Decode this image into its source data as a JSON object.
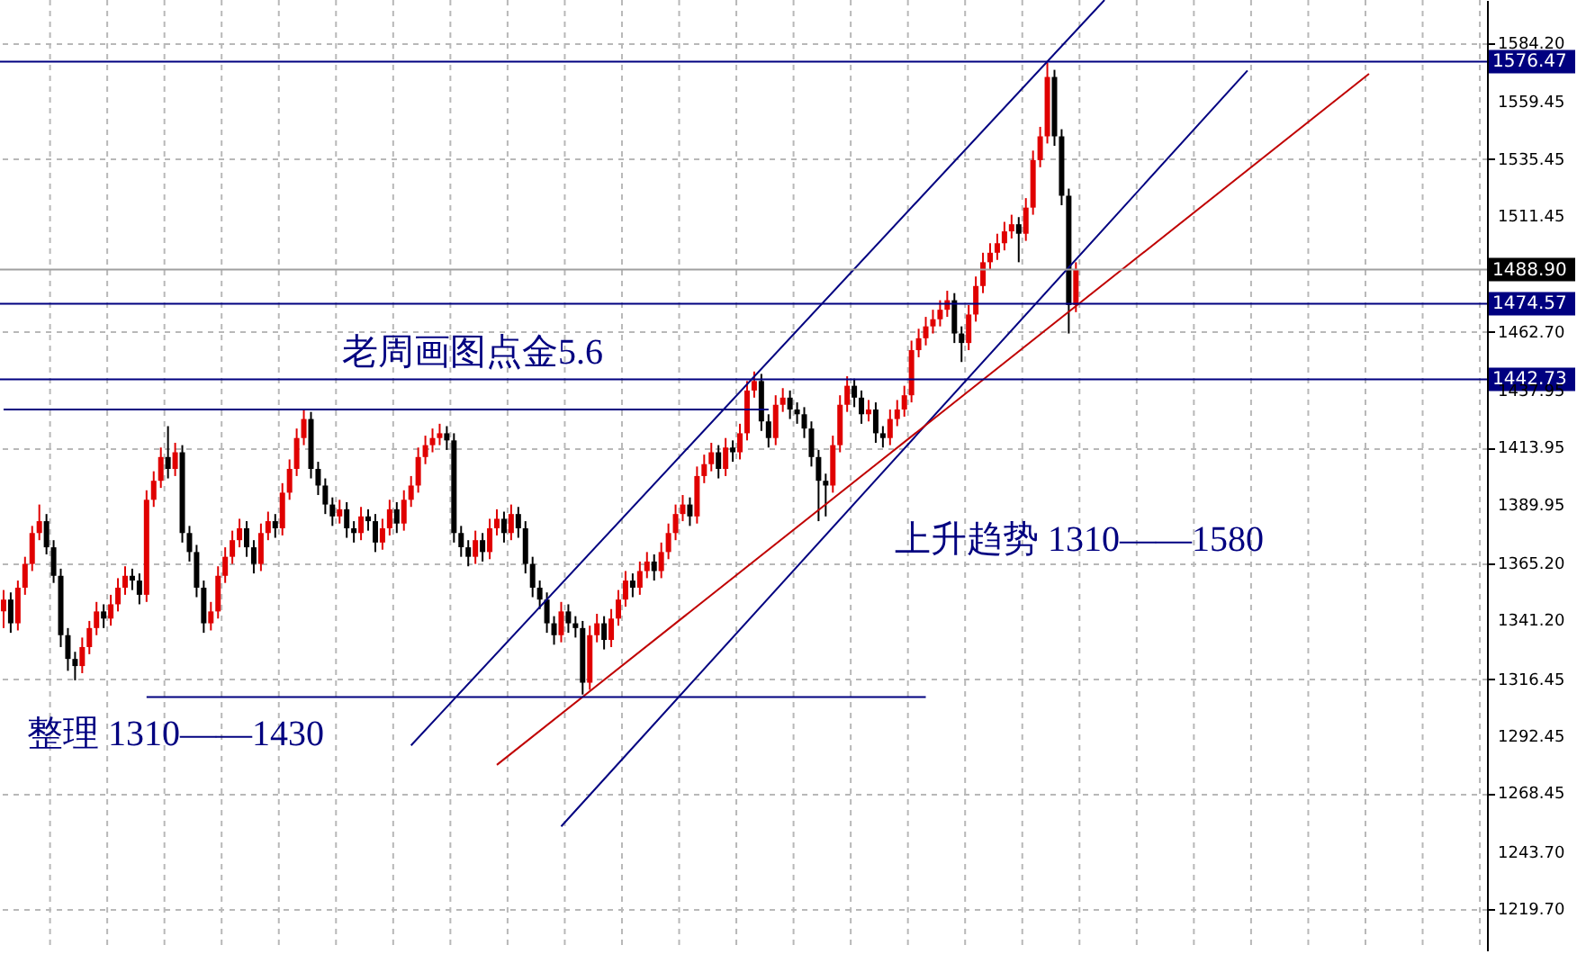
{
  "chart_data": {
    "type": "candlestick",
    "categories": [
      null,
      null,
      null,
      null,
      null,
      null,
      null,
      null,
      null,
      null,
      null,
      null,
      null,
      null,
      null,
      null,
      null,
      null,
      null,
      null,
      null,
      null,
      null,
      null,
      null,
      null,
      null,
      null,
      null,
      null,
      null,
      null,
      null,
      null,
      null,
      null,
      null,
      null,
      null,
      null,
      null,
      null,
      null,
      null,
      null,
      null,
      null,
      null,
      null,
      null,
      null,
      null,
      null,
      null,
      null,
      null,
      null,
      null,
      null,
      null,
      null,
      null,
      null,
      null,
      null,
      null,
      null,
      null,
      null,
      null,
      null,
      null,
      null,
      null,
      null,
      null,
      null,
      null,
      null,
      null,
      null,
      null,
      null,
      null,
      null,
      null,
      null,
      null,
      null,
      null,
      null,
      null,
      null,
      null,
      null,
      null,
      null,
      null,
      null,
      null,
      null,
      null,
      null,
      null,
      null,
      null,
      null,
      null,
      null,
      null,
      null,
      null,
      null,
      null,
      null,
      null,
      null,
      null,
      null,
      null,
      null,
      null,
      null,
      null,
      null,
      null,
      null,
      null,
      null,
      null,
      null,
      null,
      null,
      null,
      null,
      null,
      null,
      null,
      null,
      null,
      null,
      null,
      null,
      null,
      null,
      null,
      null,
      null,
      null,
      null,
      null,
      null,
      null,
      null,
      null,
      null,
      null,
      null,
      null,
      null,
      null,
      null,
      null,
      null,
      null,
      null,
      null,
      null,
      null,
      null,
      null,
      null,
      null,
      null,
      null,
      null,
      null,
      null,
      null,
      null,
      null,
      null,
      null,
      null,
      null,
      null,
      null,
      null,
      null,
      null,
      null,
      null,
      null,
      null,
      null,
      null,
      null,
      null,
      null,
      null,
      null,
      null,
      null,
      null,
      null,
      null,
      null,
      null
    ],
    "ohlc": [
      [
        1345,
        1354,
        1338,
        1350
      ],
      [
        1350,
        1353,
        1336,
        1340
      ],
      [
        1340,
        1358,
        1337,
        1355
      ],
      [
        1355,
        1368,
        1352,
        1365
      ],
      [
        1365,
        1381,
        1362,
        1378
      ],
      [
        1378,
        1390,
        1375,
        1383
      ],
      [
        1383,
        1386,
        1369,
        1372
      ],
      [
        1372,
        1375,
        1357,
        1360
      ],
      [
        1360,
        1363,
        1330,
        1335
      ],
      [
        1335,
        1338,
        1320,
        1325
      ],
      [
        1325,
        1328,
        1316,
        1322
      ],
      [
        1322,
        1334,
        1319,
        1330
      ],
      [
        1330,
        1341,
        1327,
        1338
      ],
      [
        1338,
        1349,
        1335,
        1345
      ],
      [
        1345,
        1348,
        1338,
        1342
      ],
      [
        1342,
        1352,
        1339,
        1348
      ],
      [
        1348,
        1359,
        1345,
        1355
      ],
      [
        1355,
        1364,
        1352,
        1360
      ],
      [
        1360,
        1363,
        1354,
        1358
      ],
      [
        1358,
        1361,
        1348,
        1352
      ],
      [
        1352,
        1396,
        1349,
        1392
      ],
      [
        1392,
        1404,
        1389,
        1400
      ],
      [
        1400,
        1414,
        1397,
        1410
      ],
      [
        1410,
        1423,
        1401,
        1405
      ],
      [
        1405,
        1416,
        1402,
        1412
      ],
      [
        1412,
        1415,
        1374,
        1378
      ],
      [
        1378,
        1381,
        1366,
        1370
      ],
      [
        1370,
        1373,
        1351,
        1355
      ],
      [
        1355,
        1358,
        1336,
        1340
      ],
      [
        1340,
        1349,
        1337,
        1345
      ],
      [
        1345,
        1364,
        1342,
        1360
      ],
      [
        1360,
        1372,
        1357,
        1368
      ],
      [
        1368,
        1379,
        1365,
        1375
      ],
      [
        1375,
        1384,
        1372,
        1380
      ],
      [
        1380,
        1383,
        1368,
        1372
      ],
      [
        1372,
        1375,
        1361,
        1365
      ],
      [
        1365,
        1382,
        1362,
        1378
      ],
      [
        1378,
        1387,
        1375,
        1383
      ],
      [
        1383,
        1386,
        1376,
        1380
      ],
      [
        1380,
        1399,
        1377,
        1395
      ],
      [
        1395,
        1409,
        1392,
        1405
      ],
      [
        1405,
        1422,
        1402,
        1418
      ],
      [
        1418,
        1430,
        1415,
        1426
      ],
      [
        1426,
        1429,
        1401,
        1405
      ],
      [
        1405,
        1408,
        1394,
        1398
      ],
      [
        1398,
        1401,
        1386,
        1390
      ],
      [
        1390,
        1393,
        1381,
        1385
      ],
      [
        1385,
        1392,
        1382,
        1388
      ],
      [
        1388,
        1391,
        1376,
        1380
      ],
      [
        1380,
        1383,
        1374,
        1378
      ],
      [
        1378,
        1389,
        1375,
        1385
      ],
      [
        1385,
        1388,
        1379,
        1383
      ],
      [
        1383,
        1386,
        1370,
        1374
      ],
      [
        1374,
        1384,
        1371,
        1380
      ],
      [
        1380,
        1392,
        1377,
        1388
      ],
      [
        1388,
        1391,
        1378,
        1382
      ],
      [
        1382,
        1396,
        1379,
        1392
      ],
      [
        1392,
        1402,
        1389,
        1398
      ],
      [
        1398,
        1414,
        1395,
        1410
      ],
      [
        1410,
        1419,
        1407,
        1415
      ],
      [
        1415,
        1422,
        1412,
        1418
      ],
      [
        1418,
        1424,
        1415,
        1420
      ],
      [
        1420,
        1423,
        1413,
        1417
      ],
      [
        1417,
        1420,
        1374,
        1378
      ],
      [
        1378,
        1381,
        1368,
        1372
      ],
      [
        1372,
        1375,
        1364,
        1368
      ],
      [
        1368,
        1379,
        1365,
        1375
      ],
      [
        1375,
        1378,
        1366,
        1370
      ],
      [
        1370,
        1384,
        1367,
        1380
      ],
      [
        1380,
        1388,
        1377,
        1384
      ],
      [
        1384,
        1387,
        1374,
        1378
      ],
      [
        1378,
        1390,
        1375,
        1386
      ],
      [
        1386,
        1389,
        1376,
        1380
      ],
      [
        1380,
        1383,
        1361,
        1365
      ],
      [
        1365,
        1368,
        1351,
        1355
      ],
      [
        1355,
        1358,
        1346,
        1350
      ],
      [
        1350,
        1353,
        1336,
        1340
      ],
      [
        1340,
        1343,
        1331,
        1335
      ],
      [
        1335,
        1349,
        1332,
        1345
      ],
      [
        1345,
        1348,
        1336,
        1340
      ],
      [
        1340,
        1343,
        1334,
        1338
      ],
      [
        1338,
        1341,
        1310,
        1315
      ],
      [
        1315,
        1339,
        1312,
        1335
      ],
      [
        1335,
        1344,
        1332,
        1340
      ],
      [
        1340,
        1343,
        1329,
        1333
      ],
      [
        1333,
        1346,
        1330,
        1342
      ],
      [
        1342,
        1354,
        1339,
        1350
      ],
      [
        1350,
        1362,
        1347,
        1358
      ],
      [
        1358,
        1361,
        1351,
        1355
      ],
      [
        1355,
        1366,
        1352,
        1362
      ],
      [
        1362,
        1370,
        1359,
        1366
      ],
      [
        1366,
        1369,
        1358,
        1362
      ],
      [
        1362,
        1374,
        1359,
        1370
      ],
      [
        1370,
        1382,
        1367,
        1378
      ],
      [
        1378,
        1390,
        1375,
        1386
      ],
      [
        1386,
        1394,
        1383,
        1390
      ],
      [
        1390,
        1393,
        1381,
        1385
      ],
      [
        1385,
        1406,
        1382,
        1402
      ],
      [
        1402,
        1411,
        1399,
        1407
      ],
      [
        1407,
        1416,
        1404,
        1412
      ],
      [
        1412,
        1415,
        1401,
        1405
      ],
      [
        1405,
        1418,
        1402,
        1414
      ],
      [
        1414,
        1417,
        1408,
        1412
      ],
      [
        1412,
        1424,
        1409,
        1420
      ],
      [
        1420,
        1442,
        1417,
        1438
      ],
      [
        1438,
        1446,
        1435,
        1442
      ],
      [
        1442,
        1445,
        1421,
        1425
      ],
      [
        1425,
        1428,
        1414,
        1418
      ],
      [
        1418,
        1436,
        1415,
        1432
      ],
      [
        1432,
        1439,
        1429,
        1435
      ],
      [
        1435,
        1438,
        1426,
        1430
      ],
      [
        1430,
        1433,
        1424,
        1428
      ],
      [
        1428,
        1431,
        1418,
        1422
      ],
      [
        1422,
        1425,
        1406,
        1410
      ],
      [
        1410,
        1413,
        1383,
        1400
      ],
      [
        1400,
        1403,
        1385,
        1398
      ],
      [
        1398,
        1419,
        1395,
        1415
      ],
      [
        1415,
        1436,
        1412,
        1432
      ],
      [
        1432,
        1444,
        1429,
        1440
      ],
      [
        1440,
        1443,
        1431,
        1435
      ],
      [
        1435,
        1438,
        1424,
        1428
      ],
      [
        1428,
        1434,
        1425,
        1430
      ],
      [
        1430,
        1433,
        1416,
        1420
      ],
      [
        1420,
        1423,
        1414,
        1418
      ],
      [
        1418,
        1430,
        1415,
        1426
      ],
      [
        1426,
        1434,
        1423,
        1430
      ],
      [
        1430,
        1440,
        1427,
        1436
      ],
      [
        1436,
        1459,
        1433,
        1455
      ],
      [
        1455,
        1464,
        1452,
        1460
      ],
      [
        1460,
        1469,
        1457,
        1465
      ],
      [
        1465,
        1472,
        1462,
        1468
      ],
      [
        1468,
        1476,
        1465,
        1472
      ],
      [
        1472,
        1480,
        1469,
        1476
      ],
      [
        1476,
        1479,
        1458,
        1462
      ],
      [
        1462,
        1465,
        1450,
        1458
      ],
      [
        1458,
        1474,
        1455,
        1470
      ],
      [
        1470,
        1486,
        1467,
        1482
      ],
      [
        1482,
        1496,
        1479,
        1492
      ],
      [
        1492,
        1500,
        1489,
        1496
      ],
      [
        1496,
        1504,
        1493,
        1500
      ],
      [
        1500,
        1509,
        1497,
        1505
      ],
      [
        1505,
        1512,
        1502,
        1508
      ],
      [
        1508,
        1511,
        1492,
        1504
      ],
      [
        1504,
        1519,
        1501,
        1515
      ],
      [
        1515,
        1539,
        1512,
        1535
      ],
      [
        1535,
        1549,
        1532,
        1545
      ],
      [
        1545,
        1576,
        1542,
        1570
      ],
      [
        1570,
        1573,
        1541,
        1545
      ],
      [
        1545,
        1548,
        1516,
        1520
      ],
      [
        1520,
        1523,
        1462,
        1474
      ],
      [
        1474,
        1492,
        1471,
        1489
      ],
      null,
      null,
      null,
      null,
      null,
      null,
      null,
      null,
      null,
      null,
      null,
      null,
      null,
      null,
      null,
      null,
      null,
      null,
      null,
      null,
      null,
      null,
      null,
      null,
      null,
      null,
      null,
      null,
      null,
      null,
      null,
      null,
      null,
      null,
      null,
      null,
      null,
      null,
      null,
      null,
      null,
      null,
      null,
      null,
      null,
      null,
      null,
      null,
      null,
      null,
      null,
      null,
      null,
      null,
      null,
      null,
      null
    ],
    "colors": [
      "#e00000",
      "#000000",
      "#e00000",
      "#e00000",
      "#e00000",
      "#e00000",
      "#000000",
      "#000000",
      "#000000",
      "#000000",
      "#000000",
      "#e00000",
      "#e00000",
      "#e00000",
      "#000000",
      "#e00000",
      "#e00000",
      "#e00000",
      "#000000",
      "#000000",
      "#e00000",
      "#e00000",
      "#e00000",
      "#000000",
      "#e00000",
      "#000000",
      "#000000",
      "#000000",
      "#000000",
      "#e00000",
      "#e00000",
      "#e00000",
      "#e00000",
      "#e00000",
      "#000000",
      "#000000",
      "#e00000",
      "#e00000",
      "#000000",
      "#e00000",
      "#e00000",
      "#e00000",
      "#e00000",
      "#000000",
      "#000000",
      "#000000",
      "#000000",
      "#e00000",
      "#000000",
      "#000000",
      "#e00000",
      "#000000",
      "#000000",
      "#e00000",
      "#e00000",
      "#000000",
      "#e00000",
      "#e00000",
      "#e00000",
      "#e00000",
      "#e00000",
      "#e00000",
      "#000000",
      "#000000",
      "#000000",
      "#000000",
      "#e00000",
      "#000000",
      "#e00000",
      "#e00000",
      "#000000",
      "#e00000",
      "#000000",
      "#000000",
      "#000000",
      "#000000",
      "#000000",
      "#000000",
      "#e00000",
      "#000000",
      "#000000",
      "#000000",
      "#e00000",
      "#e00000",
      "#000000",
      "#e00000",
      "#e00000",
      "#e00000",
      "#000000",
      "#e00000",
      "#e00000",
      "#000000",
      "#e00000",
      "#e00000",
      "#e00000",
      "#e00000",
      "#000000",
      "#e00000",
      "#e00000",
      "#e00000",
      "#000000",
      "#e00000",
      "#000000",
      "#e00000",
      "#e00000",
      "#e00000",
      "#000000",
      "#000000",
      "#e00000",
      "#e00000",
      "#000000",
      "#000000",
      "#000000",
      "#000000",
      "#000000",
      "#000000",
      "#e00000",
      "#e00000",
      "#e00000",
      "#000000",
      "#000000",
      "#e00000",
      "#000000",
      "#000000",
      "#e00000",
      "#e00000",
      "#e00000",
      "#e00000",
      "#e00000",
      "#e00000",
      "#e00000",
      "#e00000",
      "#e00000",
      "#000000",
      "#000000",
      "#e00000",
      "#e00000",
      "#e00000",
      "#e00000",
      "#e00000",
      "#e00000",
      "#e00000",
      "#000000",
      "#e00000",
      "#e00000",
      "#e00000",
      "#e00000",
      "#000000",
      "#000000",
      "#000000",
      "#e00000",
      null,
      null,
      null,
      null,
      null,
      null,
      null,
      null,
      null,
      null,
      null,
      null,
      null,
      null,
      null,
      null,
      null,
      null,
      null,
      null,
      null,
      null,
      null,
      null,
      null,
      null,
      null,
      null,
      null,
      null,
      null,
      null,
      null,
      null,
      null,
      null,
      null,
      null,
      null,
      null,
      null,
      null,
      null,
      null,
      null,
      null,
      null,
      null,
      null,
      null,
      null,
      null,
      null,
      null,
      null,
      null,
      null
    ],
    "series": [
      {
        "type": "line",
        "color": "#000080",
        "values": [
          null,
          null,
          null,
          null,
          null,
          null,
          null,
          null,
          null,
          null,
          null,
          null,
          null,
          null,
          null,
          null,
          null,
          null,
          null,
          null,
          null,
          null,
          null,
          null,
          null,
          null,
          null,
          null,
          null,
          null,
          null,
          null,
          null,
          null,
          null,
          null,
          null,
          null,
          null,
          null,
          null,
          null,
          null,
          null,
          null,
          null,
          null,
          null,
          null,
          null,
          null,
          null,
          null,
          null,
          null,
          null,
          null,
          1288.6,
          null,
          null,
          null,
          null,
          null,
          null,
          null,
          null,
          null,
          null,
          null,
          null,
          null,
          null,
          null,
          null,
          null,
          null,
          null,
          null,
          null,
          null,
          null,
          null,
          null,
          null,
          null,
          null,
          null,
          null,
          null,
          null,
          null,
          null,
          null,
          null,
          null,
          null,
          null,
          null,
          null,
          null,
          null,
          null,
          null,
          null,
          null,
          null,
          null,
          null,
          null,
          null,
          null,
          null,
          null,
          null,
          null,
          null,
          null,
          null,
          null,
          null,
          null,
          null,
          null,
          null,
          null,
          null,
          null,
          null,
          null,
          null,
          null,
          null,
          null,
          null,
          null,
          null,
          null,
          null,
          null,
          null,
          null,
          null,
          null,
          null,
          null,
          null,
          null,
          null,
          null,
          null,
          null,
          null,
          null,
          null,
          1602.4,
          null,
          null,
          null,
          null,
          null,
          null,
          null,
          null,
          null,
          null,
          null,
          null,
          null,
          null,
          null,
          null,
          null,
          null,
          null,
          null,
          null,
          null,
          null,
          null,
          null,
          null,
          null,
          null,
          null,
          null,
          null,
          null,
          null,
          null,
          null,
          null,
          null,
          null,
          null,
          null,
          null,
          null,
          null,
          null,
          null,
          null,
          null,
          null,
          null,
          null,
          null,
          null,
          null
        ]
      },
      {
        "type": "line",
        "color": "#000080",
        "values": [
          null,
          null,
          null,
          null,
          null,
          null,
          null,
          null,
          null,
          null,
          null,
          null,
          null,
          null,
          null,
          null,
          null,
          null,
          null,
          null,
          null,
          null,
          null,
          null,
          null,
          null,
          null,
          null,
          null,
          null,
          null,
          null,
          null,
          null,
          null,
          null,
          null,
          null,
          null,
          null,
          null,
          null,
          null,
          null,
          null,
          null,
          null,
          null,
          null,
          null,
          null,
          null,
          null,
          null,
          null,
          null,
          null,
          null,
          null,
          null,
          null,
          null,
          null,
          null,
          null,
          null,
          null,
          null,
          null,
          null,
          null,
          null,
          null,
          null,
          null,
          null,
          null,
          null,
          1254.5,
          null,
          null,
          null,
          null,
          null,
          null,
          null,
          null,
          null,
          null,
          null,
          null,
          null,
          null,
          null,
          null,
          null,
          null,
          null,
          null,
          null,
          null,
          null,
          null,
          null,
          null,
          null,
          null,
          null,
          null,
          null,
          null,
          null,
          null,
          null,
          null,
          null,
          null,
          null,
          null,
          null,
          null,
          null,
          null,
          null,
          null,
          null,
          null,
          null,
          null,
          null,
          null,
          null,
          null,
          null,
          null,
          null,
          null,
          null,
          null,
          null,
          null,
          null,
          null,
          null,
          null,
          null,
          null,
          null,
          null,
          null,
          null,
          null,
          null,
          null,
          null,
          null,
          null,
          null,
          null,
          null,
          null,
          null,
          null,
          null,
          null,
          null,
          null,
          null,
          null,
          null,
          null,
          null,
          null,
          null,
          1572.7,
          null,
          null,
          null,
          null,
          null,
          null,
          null,
          null,
          null,
          null,
          null,
          null,
          null,
          null,
          null,
          null,
          null,
          null,
          null,
          null,
          null,
          null,
          null,
          null,
          null,
          null,
          null,
          null,
          null,
          null,
          null,
          null,
          null
        ]
      },
      {
        "type": "line",
        "color": "#c00000",
        "values": [
          null,
          null,
          null,
          null,
          null,
          null,
          null,
          null,
          null,
          null,
          null,
          null,
          null,
          null,
          null,
          null,
          null,
          null,
          null,
          null,
          null,
          null,
          null,
          null,
          null,
          null,
          null,
          null,
          null,
          null,
          null,
          null,
          null,
          null,
          null,
          null,
          null,
          null,
          null,
          null,
          null,
          null,
          null,
          null,
          null,
          null,
          null,
          null,
          null,
          null,
          null,
          null,
          null,
          null,
          null,
          null,
          null,
          null,
          null,
          null,
          null,
          null,
          null,
          null,
          null,
          null,
          null,
          null,
          null,
          1280.4,
          null,
          null,
          null,
          null,
          null,
          null,
          null,
          null,
          null,
          null,
          null,
          null,
          null,
          null,
          null,
          null,
          null,
          null,
          null,
          null,
          null,
          null,
          null,
          null,
          null,
          null,
          null,
          null,
          null,
          null,
          null,
          null,
          null,
          null,
          null,
          null,
          null,
          null,
          null,
          null,
          null,
          null,
          null,
          null,
          null,
          null,
          null,
          null,
          null,
          null,
          null,
          null,
          null,
          null,
          null,
          null,
          null,
          null,
          null,
          null,
          null,
          null,
          null,
          null,
          null,
          null,
          null,
          null,
          null,
          null,
          null,
          null,
          null,
          null,
          null,
          null,
          null,
          null,
          null,
          null,
          null,
          null,
          null,
          null,
          null,
          null,
          null,
          null,
          null,
          null,
          null,
          null,
          null,
          null,
          null,
          null,
          null,
          null,
          null,
          null,
          null,
          null,
          null,
          null,
          null,
          null,
          null,
          null,
          null,
          null,
          null,
          null,
          null,
          null,
          null,
          null,
          null,
          null,
          null,
          null,
          null,
          1571.3,
          null,
          null,
          null,
          null,
          null,
          null,
          null,
          null,
          null,
          null,
          null,
          null,
          null,
          null,
          null,
          null
        ]
      },
      {
        "type": "line",
        "color": "#000080",
        "values": [
          1430,
          null,
          null,
          null,
          null,
          null,
          null,
          null,
          null,
          null,
          null,
          null,
          null,
          null,
          null,
          null,
          null,
          null,
          null,
          null,
          null,
          null,
          null,
          null,
          null,
          null,
          null,
          null,
          null,
          null,
          null,
          null,
          null,
          null,
          null,
          null,
          null,
          null,
          null,
          null,
          null,
          null,
          null,
          null,
          null,
          null,
          null,
          null,
          null,
          null,
          null,
          null,
          null,
          null,
          null,
          null,
          null,
          null,
          null,
          null,
          null,
          null,
          null,
          null,
          null,
          null,
          null,
          null,
          null,
          null,
          null,
          null,
          null,
          null,
          null,
          null,
          null,
          null,
          null,
          null,
          null,
          null,
          null,
          null,
          null,
          null,
          null,
          null,
          null,
          null,
          null,
          null,
          null,
          null,
          null,
          null,
          null,
          null,
          null,
          null,
          null,
          null,
          null,
          null,
          null,
          null,
          null,
          1430,
          null,
          null,
          null,
          null,
          null,
          null,
          null,
          null,
          null,
          null,
          null,
          null,
          null,
          null,
          null,
          null,
          null,
          null,
          null,
          null,
          null,
          null,
          null,
          null,
          null,
          null,
          null,
          null,
          null,
          null,
          null,
          null,
          null,
          null,
          null,
          null,
          null,
          null,
          null,
          null,
          null,
          null,
          null,
          null,
          null,
          null,
          null,
          null,
          null,
          null,
          null,
          null,
          null,
          null,
          null,
          null,
          null,
          null,
          null,
          null,
          null,
          null,
          null,
          null,
          null,
          null,
          null,
          null,
          null,
          null,
          null,
          null,
          null,
          null,
          null,
          null,
          null,
          null,
          null,
          null,
          null,
          null,
          null,
          null,
          null,
          null,
          null,
          null,
          null,
          null,
          null,
          null,
          null,
          null,
          null,
          null,
          null,
          null,
          null,
          null
        ]
      },
      {
        "type": "line",
        "color": "#000080",
        "values": [
          null,
          null,
          null,
          null,
          null,
          null,
          null,
          null,
          null,
          null,
          null,
          null,
          null,
          null,
          null,
          null,
          null,
          null,
          null,
          null,
          1309,
          null,
          null,
          null,
          null,
          null,
          null,
          null,
          null,
          null,
          null,
          null,
          null,
          null,
          null,
          null,
          null,
          null,
          null,
          null,
          null,
          null,
          null,
          null,
          null,
          null,
          null,
          null,
          null,
          null,
          null,
          null,
          null,
          null,
          null,
          null,
          null,
          null,
          null,
          null,
          null,
          null,
          null,
          null,
          null,
          null,
          null,
          null,
          null,
          null,
          null,
          null,
          null,
          null,
          null,
          null,
          null,
          null,
          null,
          null,
          null,
          null,
          null,
          null,
          null,
          null,
          null,
          null,
          null,
          null,
          null,
          null,
          null,
          null,
          null,
          null,
          null,
          null,
          null,
          null,
          null,
          null,
          null,
          null,
          null,
          null,
          null,
          null,
          null,
          null,
          null,
          null,
          null,
          null,
          null,
          null,
          null,
          null,
          null,
          null,
          null,
          null,
          null,
          null,
          null,
          null,
          null,
          null,
          null,
          1309,
          null,
          null,
          null,
          null,
          null,
          null,
          null,
          null,
          null,
          null,
          null,
          null,
          null,
          null,
          null,
          null,
          null,
          null,
          null,
          null,
          null,
          null,
          null,
          null,
          null,
          null,
          null,
          null,
          null,
          null,
          null,
          null,
          null,
          null,
          null,
          null,
          null,
          null,
          null,
          null,
          null,
          null,
          null,
          null,
          null,
          null,
          null,
          null,
          null,
          null,
          null,
          null,
          null,
          null,
          null,
          null,
          null,
          null,
          null,
          null,
          null,
          null,
          null,
          null,
          null,
          null,
          null,
          null,
          null,
          null,
          null,
          null,
          null,
          null,
          null,
          null,
          null,
          null
        ]
      }
    ],
    "ref_lines": [
      {
        "axis": "y",
        "value": 1576.47,
        "label": "1576.47",
        "color": "#000080"
      },
      {
        "axis": "y",
        "value": 1488.9,
        "label": "1488.90",
        "color": "#a0a0a0"
      },
      {
        "axis": "y",
        "value": 1474.57,
        "label": "1474.57",
        "color": "#000080"
      },
      {
        "axis": "y",
        "value": 1442.73,
        "label": "1442.73",
        "color": "#000080"
      }
    ],
    "annotations": [
      "老周画图点金5.6",
      "上升趋势 1310——1580",
      "整理 1310——1430"
    ],
    "ylim": [
      1202.3,
      1602.4
    ],
    "yticks": [
      {
        "value": 1584.2,
        "label": "1584.20"
      },
      {
        "value": 1559.45,
        "label": "1559.45"
      },
      {
        "value": 1535.45,
        "label": "1535.45"
      },
      {
        "value": 1511.45,
        "label": "1511.45"
      },
      {
        "value": 1462.7,
        "label": "1462.70"
      },
      {
        "value": 1437.95,
        "label": "1437.95"
      },
      {
        "value": 1413.95,
        "label": "1413.95"
      },
      {
        "value": 1389.95,
        "label": "1389.95"
      },
      {
        "value": 1365.2,
        "label": "1365.20"
      },
      {
        "value": 1341.2,
        "label": "1341.20"
      },
      {
        "value": 1316.45,
        "label": "1316.45"
      },
      {
        "value": 1292.45,
        "label": "1292.45"
      },
      {
        "value": 1268.45,
        "label": "1268.45"
      },
      {
        "value": 1243.7,
        "label": "1243.70"
      },
      {
        "value": 1219.7,
        "label": "1219.70"
      }
    ],
    "grid": true,
    "tick_labels": "y"
  }
}
